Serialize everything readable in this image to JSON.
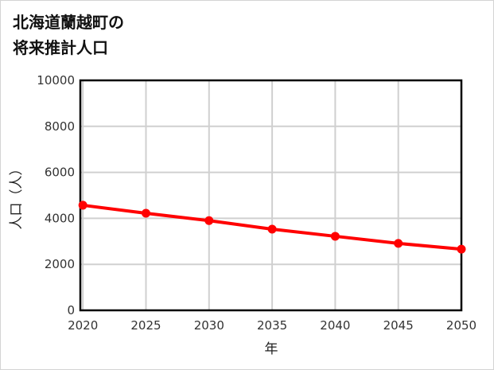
{
  "title": {
    "line1": "北海道蘭越町の",
    "line2": "将来推計人口"
  },
  "chart_data": {
    "type": "line",
    "title": "北海道蘭越町の将来推計人口",
    "xlabel": "年",
    "ylabel": "人口（人）",
    "x": [
      2020,
      2025,
      2030,
      2035,
      2040,
      2045,
      2050
    ],
    "series": [
      {
        "name": "人口",
        "values": [
          4570,
          4220,
          3900,
          3530,
          3220,
          2910,
          2660
        ],
        "color": "#ff0000"
      }
    ],
    "ylim": [
      0,
      10000
    ],
    "yticks": [
      0,
      2000,
      4000,
      6000,
      8000,
      10000
    ],
    "xticks": [
      2020,
      2025,
      2030,
      2035,
      2040,
      2045,
      2050
    ],
    "grid": true,
    "legend": null
  },
  "axis": {
    "xlabel": "年",
    "ylabel": "人口（人）",
    "yticks": [
      "0",
      "2000",
      "4000",
      "6000",
      "8000",
      "10000"
    ],
    "xticks": [
      "2020",
      "2025",
      "2030",
      "2035",
      "2040",
      "2045",
      "2050"
    ]
  },
  "colors": {
    "line": "#ff0000",
    "grid": "#d0d0d0",
    "axis": "#000000"
  }
}
